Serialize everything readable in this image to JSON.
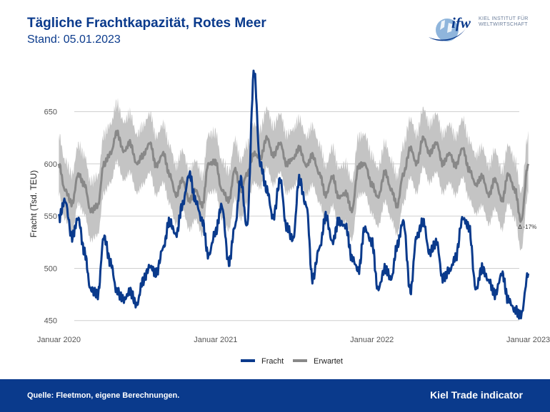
{
  "header": {
    "title": "Tägliche Frachtkapazität, Rotes Meer",
    "subtitle": "Stand: 05.01.2023"
  },
  "logo": {
    "mark": "ifw",
    "line1": "KIEL INSTITUT FÜR",
    "line2": "WELTWIRTSCHAFT",
    "icon": "globe-swoosh-icon",
    "color": "#0a3a8c"
  },
  "footer": {
    "source": "Quelle: Fleetmon, eigene Berechnungen.",
    "indicator": "Kiel Trade indicator",
    "background": "#0a3a8c"
  },
  "chart_data": {
    "type": "line",
    "title": "Tägliche Frachtkapazität, Rotes Meer",
    "subtitle": "Stand: 05.01.2023",
    "xlabel": "",
    "ylabel": "Fracht (Tsd. TEU)",
    "x_range": [
      "2019-12-28",
      "2023-01-10"
    ],
    "ylim": [
      443,
      692
    ],
    "y_ticks": [
      450,
      500,
      550,
      600,
      650
    ],
    "x_ticks": [
      {
        "date": "2020-01-01",
        "label": "Januar 2020"
      },
      {
        "date": "2021-01-01",
        "label": "Januar 2021"
      },
      {
        "date": "2022-01-01",
        "label": "Januar 2022"
      },
      {
        "date": "2023-01-01",
        "label": "Januar 2023"
      }
    ],
    "grid": true,
    "legend_position": "bottom",
    "annotation": {
      "text": "Δ -17%",
      "date": "2022-12-25",
      "value": 542
    },
    "band": {
      "name": "",
      "color": "#c4c4c4",
      "half_width": 28
    },
    "series": [
      {
        "name": "Fracht",
        "color": "#0a3a8c",
        "points": [
          [
            "2020-01-01",
            548
          ],
          [
            "2020-01-15",
            565
          ],
          [
            "2020-02-01",
            530
          ],
          [
            "2020-02-15",
            548
          ],
          [
            "2020-03-01",
            515
          ],
          [
            "2020-03-15",
            480
          ],
          [
            "2020-04-01",
            475
          ],
          [
            "2020-04-15",
            530
          ],
          [
            "2020-05-01",
            505
          ],
          [
            "2020-05-15",
            478
          ],
          [
            "2020-06-01",
            470
          ],
          [
            "2020-06-15",
            478
          ],
          [
            "2020-07-01",
            465
          ],
          [
            "2020-07-15",
            488
          ],
          [
            "2020-08-01",
            502
          ],
          [
            "2020-08-15",
            495
          ],
          [
            "2020-09-01",
            520
          ],
          [
            "2020-09-15",
            545
          ],
          [
            "2020-10-01",
            532
          ],
          [
            "2020-10-15",
            560
          ],
          [
            "2020-11-01",
            590
          ],
          [
            "2020-11-15",
            565
          ],
          [
            "2020-12-01",
            545
          ],
          [
            "2020-12-15",
            512
          ],
          [
            "2021-01-01",
            535
          ],
          [
            "2021-01-15",
            560
          ],
          [
            "2021-02-01",
            505
          ],
          [
            "2021-02-15",
            540
          ],
          [
            "2021-03-01",
            585
          ],
          [
            "2021-03-15",
            540
          ],
          [
            "2021-04-01",
            688
          ],
          [
            "2021-04-15",
            600
          ],
          [
            "2021-05-01",
            575
          ],
          [
            "2021-05-15",
            548
          ],
          [
            "2021-06-01",
            585
          ],
          [
            "2021-06-15",
            540
          ],
          [
            "2021-07-01",
            528
          ],
          [
            "2021-07-15",
            585
          ],
          [
            "2021-08-01",
            560
          ],
          [
            "2021-08-15",
            490
          ],
          [
            "2021-09-01",
            520
          ],
          [
            "2021-09-15",
            550
          ],
          [
            "2021-10-01",
            525
          ],
          [
            "2021-10-15",
            545
          ],
          [
            "2021-11-01",
            540
          ],
          [
            "2021-11-15",
            510
          ],
          [
            "2021-12-01",
            498
          ],
          [
            "2021-12-15",
            538
          ],
          [
            "2022-01-01",
            525
          ],
          [
            "2022-01-15",
            480
          ],
          [
            "2022-02-01",
            500
          ],
          [
            "2022-02-15",
            490
          ],
          [
            "2022-03-01",
            522
          ],
          [
            "2022-03-15",
            545
          ],
          [
            "2022-04-01",
            478
          ],
          [
            "2022-04-15",
            530
          ],
          [
            "2022-05-01",
            545
          ],
          [
            "2022-05-15",
            515
          ],
          [
            "2022-06-01",
            525
          ],
          [
            "2022-06-15",
            490
          ],
          [
            "2022-07-01",
            498
          ],
          [
            "2022-07-15",
            510
          ],
          [
            "2022-08-01",
            548
          ],
          [
            "2022-08-15",
            540
          ],
          [
            "2022-09-01",
            480
          ],
          [
            "2022-09-15",
            500
          ],
          [
            "2022-10-01",
            488
          ],
          [
            "2022-10-15",
            475
          ],
          [
            "2022-11-01",
            495
          ],
          [
            "2022-11-15",
            470
          ],
          [
            "2022-12-01",
            460
          ],
          [
            "2022-12-15",
            455
          ],
          [
            "2023-01-01",
            495
          ]
        ]
      },
      {
        "name": "Erwartet",
        "color": "#888888",
        "points": [
          [
            "2020-01-01",
            600
          ],
          [
            "2020-01-15",
            575
          ],
          [
            "2020-02-01",
            562
          ],
          [
            "2020-02-15",
            590
          ],
          [
            "2020-03-01",
            580
          ],
          [
            "2020-03-15",
            555
          ],
          [
            "2020-04-01",
            560
          ],
          [
            "2020-04-15",
            600
          ],
          [
            "2020-05-01",
            610
          ],
          [
            "2020-05-15",
            630
          ],
          [
            "2020-06-01",
            612
          ],
          [
            "2020-06-15",
            620
          ],
          [
            "2020-07-01",
            600
          ],
          [
            "2020-07-15",
            608
          ],
          [
            "2020-08-01",
            620
          ],
          [
            "2020-08-15",
            598
          ],
          [
            "2020-09-01",
            610
          ],
          [
            "2020-09-15",
            590
          ],
          [
            "2020-10-01",
            570
          ],
          [
            "2020-10-15",
            585
          ],
          [
            "2020-11-01",
            565
          ],
          [
            "2020-11-15",
            575
          ],
          [
            "2020-12-01",
            560
          ],
          [
            "2020-12-15",
            600
          ],
          [
            "2021-01-01",
            602
          ],
          [
            "2021-01-15",
            575
          ],
          [
            "2021-02-01",
            565
          ],
          [
            "2021-02-15",
            595
          ],
          [
            "2021-03-01",
            575
          ],
          [
            "2021-03-15",
            590
          ],
          [
            "2021-04-01",
            610
          ],
          [
            "2021-04-15",
            605
          ],
          [
            "2021-05-01",
            625
          ],
          [
            "2021-05-15",
            608
          ],
          [
            "2021-06-01",
            620
          ],
          [
            "2021-06-15",
            600
          ],
          [
            "2021-07-01",
            605
          ],
          [
            "2021-07-15",
            615
          ],
          [
            "2021-08-01",
            598
          ],
          [
            "2021-08-15",
            608
          ],
          [
            "2021-09-01",
            590
          ],
          [
            "2021-09-15",
            570
          ],
          [
            "2021-10-01",
            588
          ],
          [
            "2021-10-15",
            568
          ],
          [
            "2021-11-01",
            572
          ],
          [
            "2021-11-15",
            555
          ],
          [
            "2021-12-01",
            598
          ],
          [
            "2021-12-15",
            600
          ],
          [
            "2022-01-01",
            580
          ],
          [
            "2022-01-15",
            568
          ],
          [
            "2022-02-01",
            592
          ],
          [
            "2022-02-15",
            575
          ],
          [
            "2022-03-01",
            560
          ],
          [
            "2022-03-15",
            590
          ],
          [
            "2022-04-01",
            615
          ],
          [
            "2022-04-15",
            600
          ],
          [
            "2022-05-01",
            625
          ],
          [
            "2022-05-15",
            610
          ],
          [
            "2022-06-01",
            620
          ],
          [
            "2022-06-15",
            600
          ],
          [
            "2022-07-01",
            610
          ],
          [
            "2022-07-15",
            598
          ],
          [
            "2022-08-01",
            615
          ],
          [
            "2022-08-15",
            595
          ],
          [
            "2022-09-01",
            580
          ],
          [
            "2022-09-15",
            588
          ],
          [
            "2022-10-01",
            570
          ],
          [
            "2022-10-15",
            585
          ],
          [
            "2022-11-01",
            565
          ],
          [
            "2022-11-15",
            590
          ],
          [
            "2022-12-01",
            575
          ],
          [
            "2022-12-15",
            545
          ],
          [
            "2023-01-01",
            600
          ]
        ]
      }
    ]
  }
}
